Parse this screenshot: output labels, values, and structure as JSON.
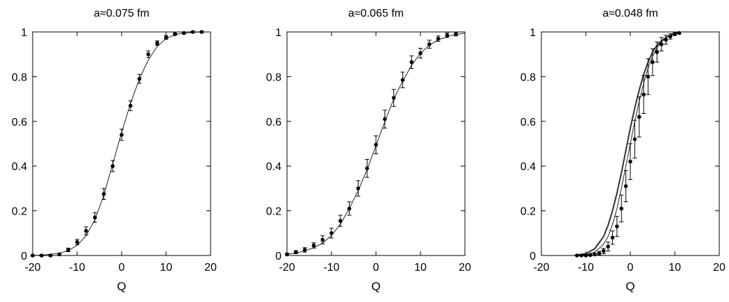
{
  "chart_data": [
    {
      "type": "scatter",
      "title": "a≈0.075 fm",
      "xlabel": "Q",
      "ylabel": "",
      "xlim": [
        -20,
        20
      ],
      "ylim": [
        0,
        1
      ],
      "xticks": [
        -20,
        -10,
        0,
        10,
        20
      ],
      "yticks": [
        0,
        0.2,
        0.4,
        0.6,
        0.8,
        1
      ],
      "ytick_labels": [
        "0",
        "0.2",
        "0.4",
        "0.6",
        "0.8",
        "1"
      ],
      "grid": false,
      "series": [
        {
          "x": [
            -20,
            -18,
            -16,
            -14,
            -12,
            -10,
            -8,
            -6,
            -4,
            -2,
            0,
            2,
            4,
            6,
            8,
            10,
            12,
            14,
            16,
            18
          ],
          "y": [
            0.0,
            0.0,
            0.0,
            0.005,
            0.025,
            0.06,
            0.11,
            0.17,
            0.275,
            0.4,
            0.54,
            0.67,
            0.79,
            0.9,
            0.95,
            0.975,
            0.99,
            0.995,
            1.0,
            1.0
          ],
          "err": [
            0.003,
            0.003,
            0.003,
            0.004,
            0.008,
            0.012,
            0.018,
            0.022,
            0.025,
            0.025,
            0.025,
            0.022,
            0.02,
            0.015,
            0.01,
            0.008,
            0.005,
            0.003,
            0.002,
            0.002
          ]
        }
      ],
      "curves": [
        {
          "x": [
            -20,
            -17,
            -14,
            -12,
            -10,
            -8,
            -6,
            -4,
            -2,
            0,
            2,
            4,
            6,
            8,
            10,
            12,
            14,
            17,
            20
          ],
          "y": [
            0.0,
            0.003,
            0.01,
            0.022,
            0.045,
            0.088,
            0.16,
            0.27,
            0.41,
            0.55,
            0.68,
            0.79,
            0.875,
            0.935,
            0.97,
            0.988,
            0.995,
            0.999,
            1.0
          ],
          "style": "thin"
        }
      ]
    },
    {
      "type": "scatter",
      "title": "a≈0.065 fm",
      "xlabel": "Q",
      "ylabel": "",
      "xlim": [
        -20,
        20
      ],
      "ylim": [
        0,
        1
      ],
      "xticks": [
        -20,
        -10,
        0,
        10,
        20
      ],
      "yticks": [
        0,
        0.2,
        0.4,
        0.6,
        0.8,
        1
      ],
      "ytick_labels": [
        "0",
        "0.2",
        "0.4",
        "0.6",
        "0.8",
        "1"
      ],
      "grid": false,
      "series": [
        {
          "x": [
            -20,
            -18,
            -16,
            -14,
            -12,
            -10,
            -8,
            -6,
            -4,
            -2,
            0,
            2,
            4,
            6,
            8,
            10,
            12,
            14,
            16,
            18
          ],
          "y": [
            0.005,
            0.015,
            0.025,
            0.045,
            0.07,
            0.1,
            0.155,
            0.21,
            0.3,
            0.39,
            0.495,
            0.61,
            0.705,
            0.785,
            0.865,
            0.905,
            0.945,
            0.97,
            0.985,
            0.99
          ],
          "err": [
            0.005,
            0.007,
            0.01,
            0.012,
            0.018,
            0.022,
            0.025,
            0.03,
            0.035,
            0.04,
            0.04,
            0.04,
            0.038,
            0.035,
            0.028,
            0.022,
            0.018,
            0.012,
            0.01,
            0.008
          ]
        }
      ],
      "curves": [
        {
          "x": [
            -20,
            -17,
            -14,
            -12,
            -10,
            -8,
            -6,
            -4,
            -2,
            0,
            2,
            4,
            6,
            8,
            10,
            12,
            14,
            17,
            20
          ],
          "y": [
            0.005,
            0.015,
            0.035,
            0.055,
            0.09,
            0.14,
            0.21,
            0.29,
            0.385,
            0.49,
            0.6,
            0.7,
            0.78,
            0.85,
            0.905,
            0.94,
            0.965,
            0.985,
            0.995
          ],
          "style": "thin"
        }
      ]
    },
    {
      "type": "scatter",
      "title": "a≈0.048 fm",
      "xlabel": "Q",
      "ylabel": "",
      "xlim": [
        -20,
        20
      ],
      "ylim": [
        0,
        1
      ],
      "xticks": [
        -20,
        -10,
        0,
        10,
        20
      ],
      "yticks": [
        0,
        0.2,
        0.4,
        0.6,
        0.8,
        1
      ],
      "ytick_labels": [
        "0",
        "0.2",
        "0.4",
        "0.6",
        "0.8",
        "1"
      ],
      "grid": false,
      "series": [
        {
          "x": [
            -12,
            -11,
            -10,
            -9,
            -8,
            -7,
            -6,
            -5,
            -4,
            -3,
            -2,
            -1,
            0,
            1,
            2,
            3,
            4,
            5,
            6,
            7,
            8,
            9,
            10,
            11
          ],
          "y": [
            0.0,
            0.0,
            0.0,
            0.002,
            0.005,
            0.01,
            0.02,
            0.04,
            0.08,
            0.13,
            0.21,
            0.31,
            0.42,
            0.52,
            0.62,
            0.72,
            0.8,
            0.865,
            0.91,
            0.945,
            0.965,
            0.98,
            0.99,
            0.995
          ],
          "err": [
            0.002,
            0.002,
            0.002,
            0.003,
            0.005,
            0.008,
            0.012,
            0.02,
            0.03,
            0.045,
            0.06,
            0.07,
            0.08,
            0.085,
            0.09,
            0.085,
            0.08,
            0.06,
            0.045,
            0.03,
            0.02,
            0.012,
            0.006,
            0.004
          ]
        }
      ],
      "curves": [
        {
          "x": [
            -12,
            -10,
            -8,
            -6,
            -5,
            -4,
            -3,
            -2,
            -1,
            0,
            1,
            2,
            3,
            4,
            5,
            6,
            7,
            8,
            9,
            10,
            11
          ],
          "y": [
            0.002,
            0.008,
            0.03,
            0.085,
            0.135,
            0.2,
            0.28,
            0.37,
            0.47,
            0.57,
            0.66,
            0.74,
            0.81,
            0.865,
            0.91,
            0.94,
            0.96,
            0.975,
            0.985,
            0.993,
            0.998
          ],
          "style": "thick"
        },
        {
          "x": [
            -12,
            -10,
            -8,
            -6,
            -5,
            -4,
            -3,
            -2,
            -1,
            0,
            1,
            2,
            3,
            4,
            5,
            6,
            7,
            8,
            9,
            10,
            11
          ],
          "y": [
            0.001,
            0.004,
            0.015,
            0.05,
            0.085,
            0.14,
            0.21,
            0.3,
            0.4,
            0.5,
            0.6,
            0.69,
            0.77,
            0.84,
            0.89,
            0.93,
            0.955,
            0.973,
            0.985,
            0.993,
            0.997
          ],
          "style": "thin"
        }
      ]
    }
  ]
}
